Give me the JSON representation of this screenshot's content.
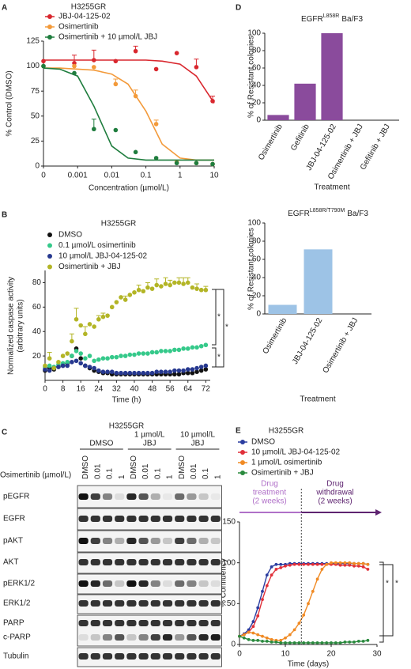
{
  "chart_data": [
    {
      "type": "scatter",
      "panel": "A",
      "title": "H3255GR",
      "xlabel": "Concentration (µmol/L)",
      "ylabel": "% Control (DMSO)",
      "xscale": "log",
      "xlim": [
        0.0001,
        10
      ],
      "xticks": [
        {
          "value": 0.0001,
          "label": "0"
        },
        0.001,
        0.01,
        0.1,
        1,
        10
      ],
      "ylim": [
        0,
        125
      ],
      "yticks": [
        0,
        25,
        50,
        75,
        100,
        125
      ],
      "x": [
        0.0001,
        0.0008,
        0.003,
        0.013,
        0.05,
        0.2,
        0.8,
        3,
        9
      ],
      "curve_x": [
        0.0001,
        0.0003,
        0.001,
        0.003,
        0.01,
        0.03,
        0.1,
        0.3,
        1,
        3,
        10
      ],
      "series": [
        {
          "name": "JBJ-04-125-02",
          "color": "#d9272e",
          "values": [
            105,
            103,
            106,
            105,
            115,
            97,
            113,
            99,
            65
          ],
          "errors": [
            null,
            8,
            10,
            null,
            5,
            null,
            null,
            8,
            5
          ],
          "curve_values": [
            106,
            106,
            106,
            106,
            106,
            106,
            106,
            105,
            102,
            90,
            63
          ]
        },
        {
          "name": "Osimertinib",
          "color": "#f39a3a",
          "values": [
            100,
            100,
            99,
            82,
            70,
            42,
            4,
            3,
            2
          ],
          "errors": [
            null,
            null,
            null,
            5,
            6,
            4,
            null,
            null,
            null
          ],
          "curve_values": [
            98,
            98,
            97,
            96,
            92,
            82,
            55,
            22,
            8,
            6,
            6
          ]
        },
        {
          "name": "Osimertinib + 10 µmol/L JBJ",
          "color": "#1f7d3e",
          "values": [
            100,
            93,
            37,
            36,
            14,
            8,
            3,
            3,
            2
          ],
          "errors": [
            null,
            null,
            10,
            null,
            null,
            null,
            null,
            null,
            null
          ],
          "curve_values": [
            98,
            97,
            90,
            60,
            20,
            8,
            6,
            6,
            6,
            6,
            6
          ]
        }
      ]
    },
    {
      "type": "scatter",
      "panel": "B",
      "title": "H3255GR",
      "xlabel": "Time (h)",
      "ylabel": [
        "Normalized caspase activity",
        "(arbitrary units)"
      ],
      "xlim": [
        0,
        74
      ],
      "xticks": [
        0,
        8,
        16,
        24,
        32,
        40,
        48,
        56,
        64,
        72
      ],
      "ylim": [
        0,
        90
      ],
      "yticks": [
        20,
        40,
        60,
        80
      ],
      "x": [
        0,
        2,
        4,
        6,
        8,
        10,
        12,
        14,
        16,
        18,
        20,
        22,
        24,
        26,
        28,
        30,
        32,
        34,
        36,
        38,
        40,
        42,
        44,
        46,
        48,
        50,
        52,
        54,
        56,
        58,
        60,
        62,
        64,
        66,
        68,
        70,
        72
      ],
      "significance": [
        "*",
        "*",
        "*"
      ],
      "series": [
        {
          "name": "DMSO",
          "color": "#111111",
          "values": [
            8,
            10,
            9,
            11,
            12,
            14,
            20,
            26,
            18,
            12,
            10,
            8,
            7,
            6,
            6,
            5,
            5,
            5,
            5,
            5,
            5,
            5,
            5,
            5,
            5,
            5,
            5,
            5,
            5,
            5,
            5,
            6,
            6,
            6,
            7,
            8,
            9
          ]
        },
        {
          "name": "0.1 µmol/L osimertinib",
          "color": "#35c98a",
          "values": [
            11,
            12,
            11,
            13,
            14,
            15,
            20,
            24,
            22,
            18,
            20,
            16,
            17,
            18,
            18,
            19,
            19,
            20,
            20,
            21,
            21,
            22,
            22,
            22,
            23,
            23,
            24,
            24,
            24,
            25,
            25,
            26,
            26,
            27,
            27,
            28,
            29
          ]
        },
        {
          "name": "10 µmol/L JBJ-04-125-02",
          "color": "#26388f",
          "values": [
            9,
            8,
            10,
            11,
            12,
            12,
            15,
            16,
            14,
            12,
            11,
            10,
            8,
            7,
            7,
            7,
            6,
            6,
            6,
            6,
            6,
            6,
            6,
            6,
            6,
            7,
            7,
            7,
            7,
            8,
            8,
            8,
            9,
            9,
            10,
            11,
            12
          ]
        },
        {
          "name": "Osimertinib + JBJ",
          "color": "#b3b526",
          "values": [
            12,
            18,
            10,
            15,
            20,
            22,
            32,
            50,
            45,
            38,
            46,
            44,
            50,
            52,
            53,
            60,
            64,
            68,
            66,
            70,
            72,
            74,
            73,
            76,
            75,
            78,
            77,
            79,
            78,
            80,
            80,
            79,
            80,
            76,
            75,
            74,
            74
          ],
          "errors": [
            null,
            5,
            null,
            null,
            null,
            null,
            6,
            9,
            null,
            6,
            null,
            null,
            3,
            3,
            null,
            null,
            null,
            null,
            3,
            null,
            null,
            4,
            null,
            4,
            null,
            5,
            null,
            5,
            4,
            null,
            4,
            5,
            4,
            null,
            4,
            null,
            3
          ]
        }
      ]
    },
    {
      "type": "bar",
      "panel": "D",
      "title": {
        "main": "EGFR",
        "sup": "L858R",
        "rest": "Ba/F3"
      },
      "xlabel": "Treatment",
      "ylabel": "% of Resistant colonies",
      "categories": [
        "Osimertinib",
        "Gefitinib",
        "JBJ-04-125-02",
        "Osimertinib + JBJ",
        "Gefitinib + JBJ"
      ],
      "values": [
        6,
        42,
        100,
        0,
        0
      ],
      "color": "#8a4b9c",
      "ylim": [
        0,
        100
      ],
      "yticks": [
        0,
        20,
        40,
        60,
        80,
        100
      ]
    },
    {
      "type": "bar",
      "title": {
        "main": "EGFR",
        "sup": "L858R/T790M",
        "rest": "Ba/F3"
      },
      "xlabel": "Treatment",
      "ylabel": "% of Resistant colonies",
      "categories": [
        "Osimertinib",
        "JBJ-04-125-02",
        "Osimertinib + JBJ"
      ],
      "values": [
        10,
        71,
        0
      ],
      "color": "#9dc3e6",
      "ylim": [
        0,
        100
      ],
      "yticks": [
        0,
        20,
        40,
        60,
        80,
        100
      ]
    },
    {
      "type": "line",
      "panel": "E",
      "title": "H3255GR",
      "xlabel": "Time (days)",
      "ylabel": "% Confluency",
      "xlim": [
        0,
        30
      ],
      "xticks": [
        0,
        10,
        20,
        30
      ],
      "ylim": [
        0,
        150
      ],
      "yticks": [
        0,
        50,
        100,
        150
      ],
      "drug_treatment": [
        "Drug",
        "treatment",
        "(2 weeks)"
      ],
      "drug_withdrawal": [
        "Drug",
        "withdrawal",
        "(2 weeks)"
      ],
      "treatment_end_day": 13.5,
      "significance": [
        "*",
        "*"
      ],
      "x": [
        0,
        1,
        2,
        3,
        4,
        5,
        6,
        7,
        8,
        9,
        10,
        11,
        12,
        13,
        14,
        15,
        16,
        17,
        18,
        19,
        20,
        21,
        22,
        23,
        24,
        25,
        26,
        27,
        28
      ],
      "series": [
        {
          "name": "DMSO",
          "color": "#2b3da0",
          "values": [
            10,
            13,
            18,
            28,
            45,
            65,
            85,
            95,
            98,
            98,
            98,
            99,
            99,
            99,
            99,
            99,
            99,
            99,
            99,
            99,
            99,
            99,
            99,
            99,
            99,
            99,
            99,
            99,
            98
          ]
        },
        {
          "name": "10 µmol/L JBJ-04-125-02",
          "color": "#e0303a",
          "values": [
            10,
            12,
            15,
            22,
            35,
            55,
            72,
            85,
            92,
            94,
            96,
            97,
            98,
            98,
            98,
            98,
            98,
            98,
            98,
            98,
            98,
            98,
            97,
            97,
            97,
            96,
            96,
            95,
            92
          ]
        },
        {
          "name": "1 µmol/L osimertinib",
          "color": "#f08a24",
          "values": [
            10,
            12,
            15,
            14,
            12,
            10,
            8,
            6,
            5,
            5,
            8,
            12,
            18,
            26,
            36,
            50,
            65,
            80,
            92,
            98,
            100,
            100,
            100,
            100,
            100,
            99,
            99,
            99,
            98
          ]
        },
        {
          "name": "Osimertinib + JBJ",
          "color": "#2a8a3e",
          "values": [
            10,
            8,
            6,
            5,
            5,
            4,
            4,
            3,
            3,
            2,
            2,
            2,
            2,
            2,
            2,
            2,
            2,
            2,
            2,
            2,
            2,
            2,
            2,
            3,
            3,
            3,
            4,
            4,
            5
          ]
        }
      ]
    }
  ],
  "western_blot": {
    "panel": "C",
    "title": "H3255GR",
    "groups": [
      [
        "DMSO"
      ],
      [
        "1 µmol/L",
        "JBJ"
      ],
      [
        "10 µmol/L",
        "JBJ"
      ]
    ],
    "lanes": [
      "DMSO",
      "0.01",
      "0.1",
      "1",
      "DMSO",
      "0.01",
      "0.1",
      "1",
      "DMSO",
      "0.01",
      "0.1",
      "1"
    ],
    "row_label": "Osimertinib (µmol/L)",
    "proteins": [
      "pEGFR",
      "EGFR",
      "pAKT",
      "AKT",
      "pERK1/2",
      "ERK1/2",
      "PARP",
      "c-PARP",
      "Tubulin"
    ]
  }
}
